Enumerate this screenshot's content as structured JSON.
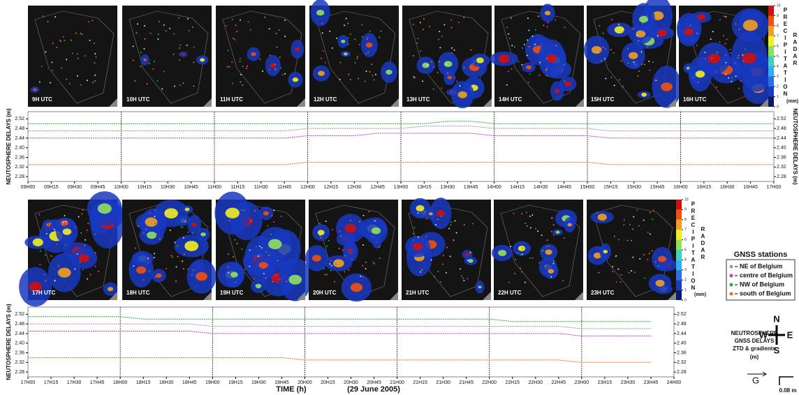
{
  "radar_top": {
    "labels": [
      "9H UTC",
      "10H UTC",
      "11H UTC",
      "12H UTC",
      "13H UTC",
      "14H UTC",
      "15H UTC",
      "16H UTC"
    ]
  },
  "radar_bottom": {
    "labels": [
      "17H UTC",
      "18H UTC",
      "19H UTC",
      "20H UTC",
      "21H UTC",
      "22H UTC",
      "23H UTC"
    ]
  },
  "colorbar": {
    "title": "PRECIPITATION",
    "subtitle": "RADAR",
    "unit": "(mm)",
    "ticks": [
      0,
      1,
      2,
      3,
      4,
      5,
      6,
      7,
      8,
      9,
      10
    ]
  },
  "legend_title": "GNSS stations",
  "right_note": [
    "NEUTROSPHERE",
    "GNSS DELAYS",
    "ZTD & gradients",
    "(m)"
  ],
  "x_label": "TIME (h)",
  "date": "(29 June 2005)",
  "compass": {
    "n": "N",
    "e": "E",
    "s": "S",
    "w": "W"
  },
  "gradient_label": "G",
  "scale_label": "0.08 m",
  "chart_data": [
    {
      "type": "line",
      "y_label": "NEUTOSPHERE DELAYS (m)",
      "categories": [
        "09H00",
        "09H15",
        "09H30",
        "09H45",
        "10H00",
        "10H15",
        "10H30",
        "10H45",
        "11H00",
        "11H15",
        "11H30",
        "11H45",
        "12H00",
        "12H15",
        "12H30",
        "12H45",
        "13H00",
        "13H15",
        "13H30",
        "13H45",
        "14H00",
        "14H15",
        "14H30",
        "14H45",
        "15H00",
        "15H15",
        "15H30",
        "15H45",
        "16H00",
        "16H15",
        "16H30",
        "16H45",
        "17H00"
      ],
      "ylim": [
        2.26,
        2.55
      ],
      "yticks": [
        2.28,
        2.32,
        {
          "value": 2.36,
          "label": "2.36"
        },
        {
          "value": 2.4,
          "label": "2.40"
        },
        2.44,
        2.48,
        2.52
      ],
      "series": [
        {
          "name": "NE of Belgium",
          "color": "#9a9a9a",
          "values": [
            2.47,
            2.47,
            2.47,
            2.47,
            2.47,
            2.47,
            2.47,
            2.47,
            2.47,
            2.47,
            2.47,
            2.47,
            2.48,
            2.48,
            2.48,
            2.48,
            2.48,
            2.49,
            2.49,
            2.49,
            2.48,
            2.48,
            2.48,
            2.48,
            2.48,
            2.47,
            2.47,
            2.47,
            2.47,
            2.47,
            2.47,
            2.47,
            2.47
          ]
        },
        {
          "name": "centre of Belgium",
          "color": "#c040c0",
          "values": [
            2.44,
            2.44,
            2.44,
            2.44,
            2.44,
            2.44,
            2.44,
            2.44,
            2.44,
            2.44,
            2.44,
            2.44,
            2.45,
            2.45,
            2.45,
            2.46,
            2.46,
            2.46,
            2.46,
            2.46,
            2.45,
            2.45,
            2.45,
            2.45,
            2.45,
            2.44,
            2.44,
            2.44,
            2.44,
            2.44,
            2.44,
            2.44,
            2.44
          ]
        },
        {
          "name": "NW of Belgium",
          "color": "#33aa33",
          "values": [
            2.5,
            2.5,
            2.5,
            2.5,
            2.5,
            2.5,
            2.5,
            2.5,
            2.5,
            2.5,
            2.5,
            2.5,
            2.5,
            2.5,
            2.5,
            2.5,
            2.5,
            2.5,
            2.51,
            2.51,
            2.5,
            2.5,
            2.5,
            2.5,
            2.5,
            2.5,
            2.5,
            2.5,
            2.5,
            2.5,
            2.5,
            2.5,
            2.5
          ]
        },
        {
          "name": "south of Belgium",
          "color": "#e87020",
          "values": [
            2.33,
            2.33,
            2.33,
            2.33,
            2.33,
            2.33,
            2.33,
            2.33,
            2.33,
            2.33,
            2.33,
            2.33,
            2.34,
            2.34,
            2.34,
            2.34,
            2.34,
            2.34,
            2.34,
            2.34,
            2.34,
            2.34,
            2.34,
            2.34,
            2.34,
            2.33,
            2.33,
            2.33,
            2.33,
            2.33,
            2.33,
            2.33,
            2.33
          ]
        }
      ]
    },
    {
      "type": "line",
      "y_label": "NEUTOSPHERE DELAYS (m)",
      "categories": [
        "17H00",
        "17H15",
        "17H30",
        "17H45",
        "18H00",
        "18H15",
        "18H30",
        "18H45",
        "19H00",
        "19H15",
        "19H30",
        "19H45",
        "20H00",
        "20H15",
        "20H30",
        "20H45",
        "21H00",
        "21H15",
        "21H30",
        "21H45",
        "22H00",
        "22H15",
        "22H30",
        "22H45",
        "23H00",
        "23H15",
        "23H30",
        "23H45",
        "24H00"
      ],
      "ylim": [
        2.26,
        2.55
      ],
      "yticks": [
        2.28,
        2.32,
        {
          "value": 2.36,
          "label": "2.36"
        },
        {
          "value": 2.4,
          "label": "2.40"
        },
        2.44,
        2.48,
        2.52
      ],
      "series": [
        {
          "name": "NE of Belgium",
          "color": "#9a9a9a",
          "values": [
            2.48,
            2.48,
            2.48,
            2.48,
            2.48,
            2.48,
            2.48,
            2.48,
            2.47,
            2.47,
            2.47,
            2.47,
            2.47,
            2.47,
            2.47,
            2.47,
            2.47,
            2.47,
            2.47,
            2.47,
            2.47,
            2.47,
            2.47,
            2.47,
            2.46,
            2.46,
            2.46,
            2.46,
            null
          ]
        },
        {
          "name": "centre of Belgium",
          "color": "#c040c0",
          "values": [
            2.45,
            2.45,
            2.45,
            2.45,
            2.45,
            2.45,
            2.45,
            2.45,
            2.44,
            2.44,
            2.44,
            2.44,
            2.44,
            2.44,
            2.44,
            2.44,
            2.44,
            2.44,
            2.44,
            2.44,
            2.44,
            2.44,
            2.44,
            2.44,
            2.43,
            2.43,
            2.43,
            2.43,
            null
          ]
        },
        {
          "name": "NW of Belgium",
          "color": "#33aa33",
          "values": [
            2.51,
            2.51,
            2.51,
            2.51,
            2.51,
            2.5,
            2.5,
            2.5,
            2.5,
            2.5,
            2.5,
            2.5,
            2.5,
            2.5,
            2.5,
            2.5,
            2.5,
            2.5,
            2.5,
            2.5,
            2.5,
            2.49,
            2.49,
            2.49,
            2.49,
            2.49,
            2.49,
            2.49,
            null
          ]
        },
        {
          "name": "south of Belgium",
          "color": "#e87020",
          "values": [
            2.34,
            2.34,
            2.34,
            2.34,
            2.34,
            2.34,
            2.34,
            2.34,
            2.34,
            2.34,
            2.34,
            2.34,
            2.33,
            2.33,
            2.33,
            2.33,
            2.33,
            2.33,
            2.33,
            2.33,
            2.33,
            2.33,
            2.33,
            2.33,
            2.32,
            2.32,
            2.32,
            2.32,
            null
          ]
        }
      ]
    }
  ]
}
